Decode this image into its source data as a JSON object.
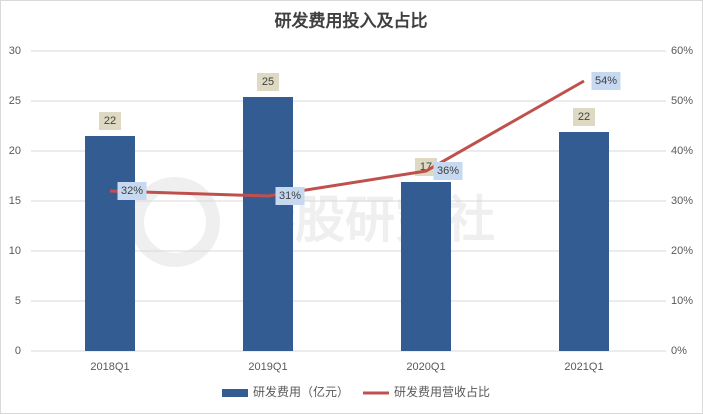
{
  "chart_data": {
    "type": "bar",
    "title": "研发费用投入及占比",
    "watermark": "港股研究社",
    "categories": [
      "2018Q1",
      "2019Q1",
      "2020Q1",
      "2021Q1"
    ],
    "series": [
      {
        "name": "研发费用（亿元）",
        "type": "bar",
        "color": "#335d92",
        "values": [
          21.5,
          25.4,
          16.9,
          21.9
        ],
        "value_labels": [
          "22",
          "25",
          "17",
          "22"
        ]
      },
      {
        "name": "研发费用营收占比",
        "type": "line",
        "axis": "y2",
        "color": "#c0504d",
        "values": [
          32,
          31,
          36,
          54
        ],
        "value_labels": [
          "32%",
          "31%",
          "36%",
          "54%"
        ]
      }
    ],
    "ylim": [
      0,
      30
    ],
    "yticks": [
      0,
      5,
      10,
      15,
      20,
      25,
      30
    ],
    "y2lim": [
      0,
      60
    ],
    "y2ticks": [
      {
        "value": 0,
        "label": "0%"
      },
      {
        "value": 10,
        "label": "10%"
      },
      {
        "value": 20,
        "label": "20%"
      },
      {
        "value": 30,
        "label": "30%"
      },
      {
        "value": 40,
        "label": "40%"
      },
      {
        "value": 50,
        "label": "50%"
      },
      {
        "value": 60,
        "label": "60%"
      }
    ],
    "grid": true,
    "legend": "bottom"
  }
}
